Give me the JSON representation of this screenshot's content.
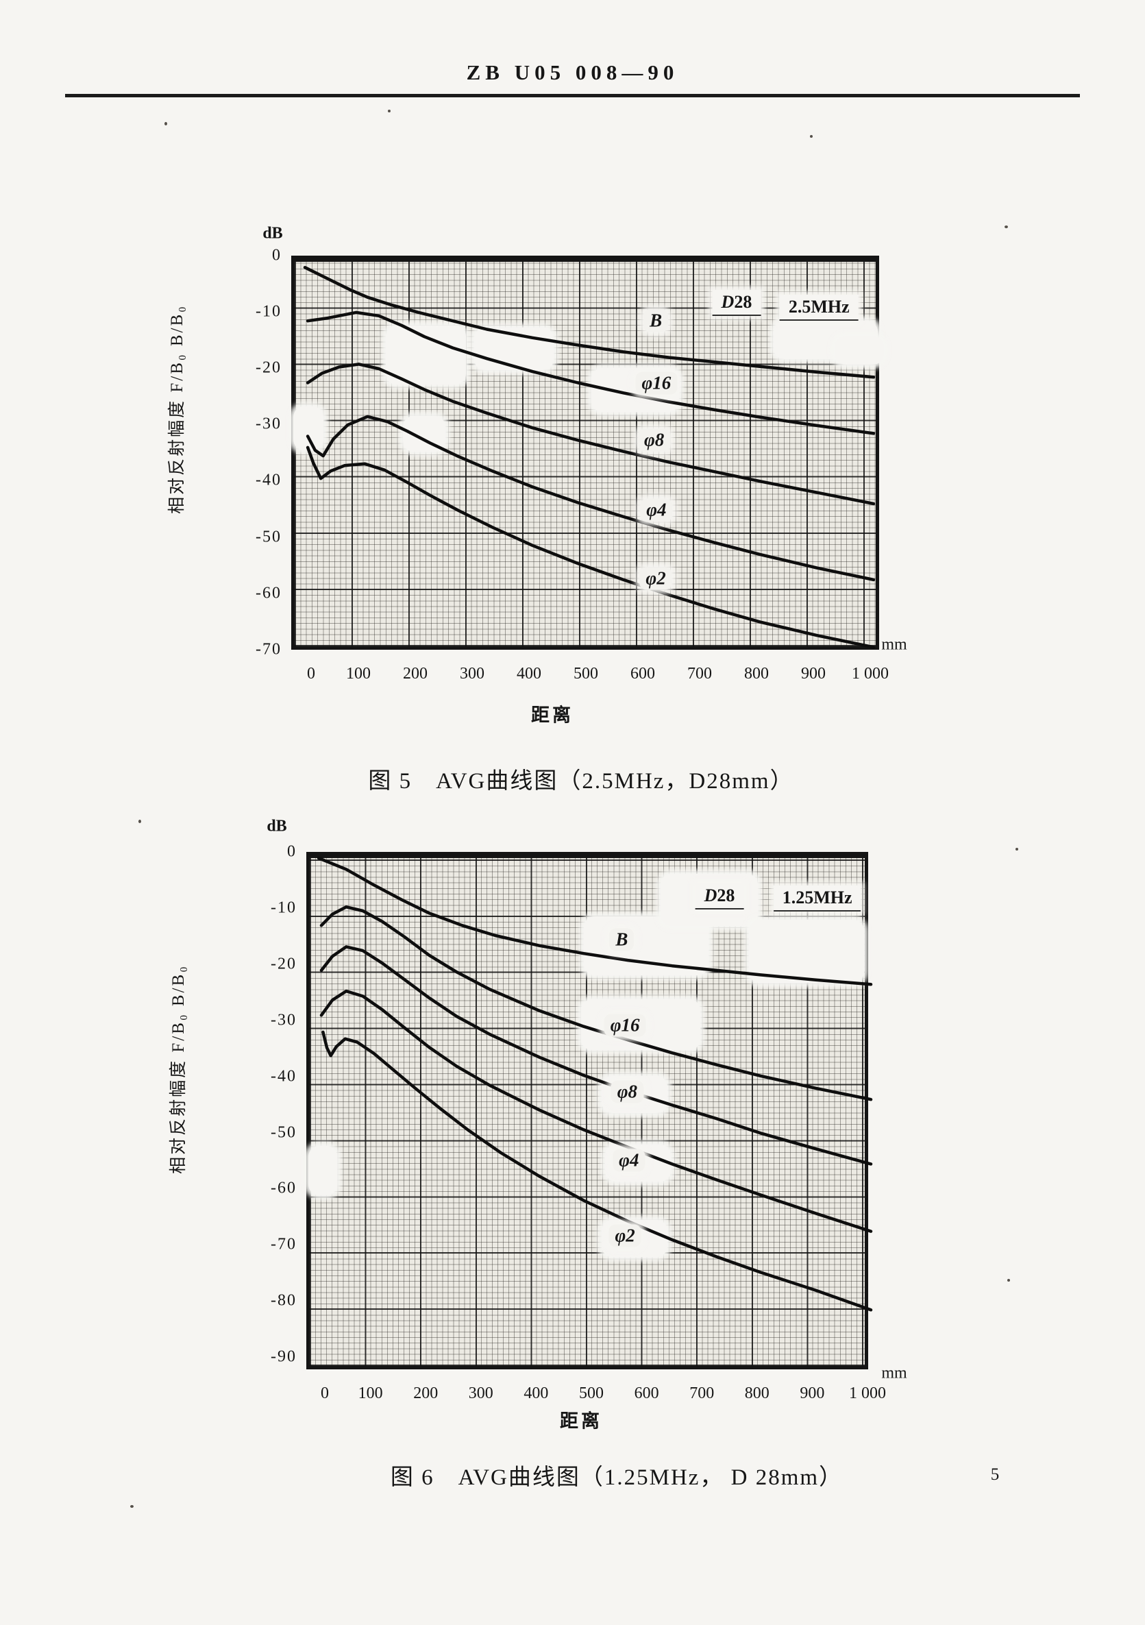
{
  "page": {
    "header_title": "ZB U05 008—90",
    "page_number": "5"
  },
  "chart_data": [
    {
      "type": "line",
      "figure": "图 5",
      "caption": "图 5　AVG曲线图（2.5MHz，D28mm）",
      "frequency": "2.5MHz",
      "probe_diameter": "D28mm",
      "xlabel": "距离",
      "ylabel": "相对反射幅度 F/B₀ B/B₀",
      "x_unit": "mm",
      "y_unit": "dB",
      "xlim": [
        0,
        1000
      ],
      "ylim": [
        -70,
        0
      ],
      "grid": true,
      "x_ticks": [
        "0",
        "100",
        "200",
        "300",
        "400",
        "500",
        "600",
        "700",
        "800",
        "900",
        "1 000"
      ],
      "y_ticks": [
        "0",
        "-10",
        "-20",
        "-30",
        "-40",
        "-50",
        "-60",
        "-70"
      ],
      "series": [
        {
          "name": "B",
          "points": [
            [
              0,
              -1
            ],
            [
              40,
              -3
            ],
            [
              80,
              -5
            ],
            [
              110,
              -6.3
            ],
            [
              150,
              -7.6
            ],
            [
              200,
              -9
            ],
            [
              260,
              -10.5
            ],
            [
              320,
              -12
            ],
            [
              400,
              -13.5
            ],
            [
              480,
              -14.8
            ],
            [
              560,
              -16
            ],
            [
              640,
              -17
            ],
            [
              720,
              -17.8
            ],
            [
              800,
              -18.6
            ],
            [
              900,
              -19.6
            ],
            [
              1000,
              -20.5
            ]
          ]
        },
        {
          "name": "φ16",
          "points": [
            [
              5,
              -10.5
            ],
            [
              40,
              -10
            ],
            [
              90,
              -9
            ],
            [
              130,
              -9.6
            ],
            [
              170,
              -11.3
            ],
            [
              210,
              -13.3
            ],
            [
              260,
              -15.3
            ],
            [
              320,
              -17.2
            ],
            [
              400,
              -19.5
            ],
            [
              480,
              -21.5
            ],
            [
              560,
              -23.3
            ],
            [
              640,
              -24.9
            ],
            [
              720,
              -26.3
            ],
            [
              800,
              -27.6
            ],
            [
              900,
              -29.1
            ],
            [
              1000,
              -30.5
            ]
          ]
        },
        {
          "name": "φ8",
          "points": [
            [
              5,
              -21.5
            ],
            [
              30,
              -19.8
            ],
            [
              60,
              -18.7
            ],
            [
              95,
              -18.2
            ],
            [
              130,
              -19
            ],
            [
              170,
              -20.8
            ],
            [
              210,
              -22.7
            ],
            [
              260,
              -24.8
            ],
            [
              320,
              -26.9
            ],
            [
              400,
              -29.5
            ],
            [
              480,
              -31.7
            ],
            [
              560,
              -33.7
            ],
            [
              640,
              -35.6
            ],
            [
              720,
              -37.3
            ],
            [
              800,
              -39
            ],
            [
              900,
              -41
            ],
            [
              1000,
              -43
            ]
          ]
        },
        {
          "name": "φ4",
          "points": [
            [
              5,
              -31
            ],
            [
              18,
              -33.5
            ],
            [
              32,
              -34.5
            ],
            [
              50,
              -31.5
            ],
            [
              75,
              -29
            ],
            [
              110,
              -27.5
            ],
            [
              145,
              -28.4
            ],
            [
              180,
              -30.1
            ],
            [
              220,
              -32.2
            ],
            [
              270,
              -34.6
            ],
            [
              330,
              -37.2
            ],
            [
              400,
              -40
            ],
            [
              480,
              -42.8
            ],
            [
              560,
              -45.3
            ],
            [
              640,
              -47.7
            ],
            [
              720,
              -49.9
            ],
            [
              800,
              -52
            ],
            [
              900,
              -54.4
            ],
            [
              1000,
              -56.5
            ]
          ]
        },
        {
          "name": "φ2",
          "points": [
            [
              5,
              -33
            ],
            [
              15,
              -35.8
            ],
            [
              28,
              -38.5
            ],
            [
              45,
              -37.2
            ],
            [
              70,
              -36.2
            ],
            [
              105,
              -35.9
            ],
            [
              140,
              -37
            ],
            [
              180,
              -39.2
            ],
            [
              220,
              -41.5
            ],
            [
              270,
              -44.2
            ],
            [
              330,
              -47.2
            ],
            [
              400,
              -50.4
            ],
            [
              480,
              -53.6
            ],
            [
              560,
              -56.5
            ],
            [
              640,
              -59.2
            ],
            [
              720,
              -61.7
            ],
            [
              800,
              -64
            ],
            [
              900,
              -66.4
            ],
            [
              1000,
              -68.5
            ]
          ]
        }
      ],
      "curve_labels": [
        {
          "text": "B",
          "x": 623,
          "y": -11.6
        },
        {
          "text": "φ16",
          "x": 624,
          "y": -22.6
        },
        {
          "text": "φ8",
          "x": 620,
          "y": -32.8
        },
        {
          "text": "φ4",
          "x": 624,
          "y": -45.2
        },
        {
          "text": "φ2",
          "x": 623,
          "y": -57.4
        }
      ],
      "annotations": [
        {
          "text": "D28",
          "x": 765,
          "y": -8.4
        },
        {
          "text": "2.5MHz",
          "x": 910,
          "y": -9.3
        }
      ]
    },
    {
      "type": "line",
      "figure": "图 6",
      "caption": "图 6　AVG曲线图（1.25MHz，  D 28mm）",
      "frequency": "1.25MHz",
      "probe_diameter": "D 28mm",
      "xlabel": "距离",
      "ylabel": "相对反射幅度 F/B₀ B/B₀",
      "x_unit": "mm",
      "y_unit": "dB",
      "xlim": [
        0,
        1000
      ],
      "ylim": [
        -90,
        0
      ],
      "grid": true,
      "x_ticks": [
        "0",
        "100",
        "200",
        "300",
        "400",
        "500",
        "600",
        "700",
        "800",
        "900",
        "1 000"
      ],
      "y_ticks": [
        "0",
        "-10",
        "-20",
        "-30",
        "-40",
        "-50",
        "-60",
        "-70",
        "-80",
        "-90"
      ],
      "series": [
        {
          "name": "B",
          "points": [
            [
              0,
              0
            ],
            [
              50,
              -2
            ],
            [
              100,
              -4.8
            ],
            [
              150,
              -7.4
            ],
            [
              200,
              -9.8
            ],
            [
              260,
              -12
            ],
            [
              320,
              -13.8
            ],
            [
              400,
              -15.6
            ],
            [
              480,
              -17
            ],
            [
              560,
              -18.2
            ],
            [
              640,
              -19.2
            ],
            [
              720,
              -20
            ],
            [
              800,
              -20.8
            ],
            [
              900,
              -21.7
            ],
            [
              1000,
              -22.5
            ]
          ]
        },
        {
          "name": "φ16",
          "points": [
            [
              5,
              -12
            ],
            [
              25,
              -10
            ],
            [
              50,
              -8.7
            ],
            [
              80,
              -9.4
            ],
            [
              115,
              -11.3
            ],
            [
              155,
              -14
            ],
            [
              200,
              -17.3
            ],
            [
              250,
              -20.3
            ],
            [
              310,
              -23.4
            ],
            [
              400,
              -27.2
            ],
            [
              480,
              -30
            ],
            [
              560,
              -32.4
            ],
            [
              640,
              -34.7
            ],
            [
              720,
              -36.8
            ],
            [
              800,
              -38.8
            ],
            [
              900,
              -41
            ],
            [
              1000,
              -43
            ]
          ]
        },
        {
          "name": "φ8",
          "points": [
            [
              5,
              -20
            ],
            [
              25,
              -17.5
            ],
            [
              50,
              -15.8
            ],
            [
              80,
              -16.5
            ],
            [
              115,
              -18.7
            ],
            [
              155,
              -21.6
            ],
            [
              200,
              -24.9
            ],
            [
              250,
              -28.2
            ],
            [
              310,
              -31.4
            ],
            [
              400,
              -35.5
            ],
            [
              480,
              -38.7
            ],
            [
              560,
              -41.5
            ],
            [
              640,
              -44
            ],
            [
              720,
              -46.4
            ],
            [
              800,
              -49
            ],
            [
              900,
              -51.8
            ],
            [
              1000,
              -54.5
            ]
          ]
        },
        {
          "name": "φ4",
          "points": [
            [
              5,
              -28
            ],
            [
              25,
              -25.3
            ],
            [
              50,
              -23.7
            ],
            [
              80,
              -24.6
            ],
            [
              115,
              -27
            ],
            [
              155,
              -30.2
            ],
            [
              200,
              -33.7
            ],
            [
              250,
              -37.1
            ],
            [
              310,
              -40.5
            ],
            [
              400,
              -44.9
            ],
            [
              480,
              -48.4
            ],
            [
              560,
              -51.5
            ],
            [
              640,
              -54.5
            ],
            [
              720,
              -57.3
            ],
            [
              800,
              -60
            ],
            [
              900,
              -63.3
            ],
            [
              1000,
              -66.5
            ]
          ]
        },
        {
          "name": "φ2",
          "points": [
            [
              8,
              -31
            ],
            [
              15,
              -33.8
            ],
            [
              22,
              -35.2
            ],
            [
              32,
              -33.6
            ],
            [
              48,
              -32.2
            ],
            [
              70,
              -32.8
            ],
            [
              100,
              -34.8
            ],
            [
              135,
              -37.7
            ],
            [
              175,
              -41
            ],
            [
              220,
              -44.6
            ],
            [
              270,
              -48.4
            ],
            [
              330,
              -52.5
            ],
            [
              400,
              -56.7
            ],
            [
              480,
              -61
            ],
            [
              560,
              -64.7
            ],
            [
              640,
              -68
            ],
            [
              720,
              -71
            ],
            [
              800,
              -73.8
            ],
            [
              900,
              -77
            ],
            [
              1000,
              -80.5
            ]
          ]
        }
      ],
      "curve_labels": [
        {
          "text": "B",
          "x": 555,
          "y": -15.6
        },
        {
          "text": "φ16",
          "x": 561,
          "y": -30.9
        },
        {
          "text": "φ8",
          "x": 565,
          "y": -42.7
        },
        {
          "text": "φ4",
          "x": 568,
          "y": -54.9
        },
        {
          "text": "φ2",
          "x": 561,
          "y": -68.4
        }
      ],
      "annotations": [
        {
          "text": "D28",
          "x": 732,
          "y": -7.9
        },
        {
          "text": "1.25MHz",
          "x": 909,
          "y": -8.3
        }
      ]
    }
  ]
}
